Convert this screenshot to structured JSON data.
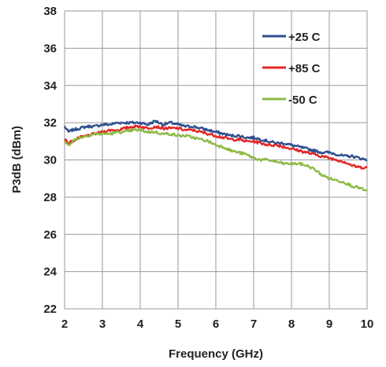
{
  "chart_data": {
    "type": "line",
    "title": "",
    "xlabel": "Frequency (GHz)",
    "ylabel": "P3dB (dBm)",
    "xlim": [
      2,
      10
    ],
    "ylim": [
      22,
      38
    ],
    "xticks": [
      "2",
      "3",
      "4",
      "5",
      "6",
      "7",
      "8",
      "9",
      "10"
    ],
    "yticks": [
      "22",
      "24",
      "26",
      "28",
      "30",
      "32",
      "34",
      "36",
      "38"
    ],
    "grid": true,
    "legend_position": "top-right",
    "series": [
      {
        "name": "+25 C",
        "color": "#2f4f8f",
        "x": [
          2.0,
          2.1,
          2.2,
          2.4,
          2.6,
          2.8,
          3.0,
          3.2,
          3.4,
          3.6,
          3.8,
          4.0,
          4.2,
          4.4,
          4.6,
          4.8,
          5.0,
          5.2,
          5.4,
          5.6,
          5.8,
          6.0,
          6.2,
          6.4,
          6.6,
          6.8,
          7.0,
          7.2,
          7.4,
          7.6,
          7.8,
          8.0,
          8.2,
          8.4,
          8.6,
          8.8,
          9.0,
          9.2,
          9.4,
          9.6,
          9.8,
          10.0
        ],
        "y": [
          31.8,
          31.5,
          31.6,
          31.7,
          31.8,
          31.8,
          31.9,
          31.9,
          32.0,
          32.0,
          32.0,
          32.0,
          31.9,
          32.1,
          31.9,
          32.0,
          31.9,
          31.8,
          31.8,
          31.7,
          31.6,
          31.5,
          31.4,
          31.3,
          31.3,
          31.2,
          31.2,
          31.1,
          31.0,
          30.9,
          30.9,
          30.8,
          30.7,
          30.6,
          30.5,
          30.4,
          30.4,
          30.3,
          30.2,
          30.2,
          30.1,
          30.0
        ]
      },
      {
        "name": "+85 C",
        "color": "#e32626",
        "x": [
          2.0,
          2.1,
          2.2,
          2.4,
          2.6,
          2.8,
          3.0,
          3.2,
          3.4,
          3.6,
          3.8,
          4.0,
          4.2,
          4.4,
          4.6,
          4.8,
          5.0,
          5.2,
          5.4,
          5.6,
          5.8,
          6.0,
          6.2,
          6.4,
          6.6,
          6.8,
          7.0,
          7.2,
          7.4,
          7.6,
          7.8,
          8.0,
          8.2,
          8.4,
          8.6,
          8.8,
          9.0,
          9.2,
          9.4,
          9.6,
          9.8,
          10.0
        ],
        "y": [
          31.1,
          30.9,
          31.0,
          31.2,
          31.3,
          31.4,
          31.5,
          31.6,
          31.6,
          31.7,
          31.8,
          31.8,
          31.7,
          31.8,
          31.7,
          31.7,
          31.7,
          31.6,
          31.6,
          31.5,
          31.4,
          31.3,
          31.2,
          31.1,
          31.1,
          31.0,
          31.0,
          30.9,
          30.8,
          30.8,
          30.7,
          30.6,
          30.5,
          30.4,
          30.3,
          30.2,
          30.1,
          30.0,
          29.9,
          29.7,
          29.6,
          29.6
        ]
      },
      {
        "name": "-50 C",
        "color": "#8dba45",
        "x": [
          2.0,
          2.1,
          2.2,
          2.4,
          2.6,
          2.8,
          3.0,
          3.2,
          3.4,
          3.6,
          3.8,
          4.0,
          4.2,
          4.4,
          4.6,
          4.8,
          5.0,
          5.2,
          5.4,
          5.6,
          5.8,
          6.0,
          6.2,
          6.4,
          6.6,
          6.8,
          7.0,
          7.2,
          7.4,
          7.6,
          7.8,
          8.0,
          8.2,
          8.4,
          8.6,
          8.8,
          9.0,
          9.2,
          9.4,
          9.6,
          9.8,
          10.0
        ],
        "y": [
          31.0,
          30.8,
          31.0,
          31.2,
          31.3,
          31.4,
          31.4,
          31.4,
          31.5,
          31.5,
          31.6,
          31.6,
          31.5,
          31.5,
          31.4,
          31.4,
          31.3,
          31.3,
          31.2,
          31.1,
          31.0,
          30.8,
          30.7,
          30.5,
          30.4,
          30.3,
          30.1,
          30.0,
          30.0,
          29.9,
          29.8,
          29.8,
          29.8,
          29.7,
          29.5,
          29.2,
          29.0,
          28.9,
          28.8,
          28.6,
          28.5,
          28.3
        ]
      }
    ]
  }
}
